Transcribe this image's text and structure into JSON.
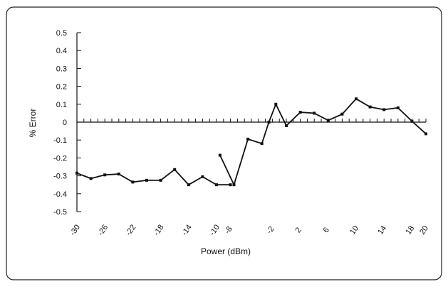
{
  "chart_data": {
    "type": "line",
    "title": "",
    "xlabel": "Power (dBm)",
    "ylabel": "% Error",
    "ylim": [
      -0.5,
      0.5
    ],
    "xlim": [
      -30,
      20
    ],
    "yticks": [
      0.5,
      0.4,
      0.3,
      0.2,
      0.1,
      0,
      -0.1,
      -0.2,
      -0.3,
      -0.4,
      -0.5
    ],
    "ytick_labels": [
      "0.5",
      "0.4",
      "0.3",
      "0.2",
      "0.1",
      "0",
      "-0.1",
      "-0.2",
      "-0.3",
      "-0.4",
      "-0.5"
    ],
    "xticks": [
      -30,
      -26,
      -22,
      -18,
      -14,
      -10,
      -8,
      -2,
      2,
      6,
      10,
      14,
      18,
      20
    ],
    "xtick_labels": [
      "-30",
      "-26",
      "-22",
      "-18",
      "-14",
      "-10",
      "-8",
      "-2",
      "2",
      "6",
      "10",
      "14",
      "18",
      "20"
    ],
    "grid": false,
    "legend": "none",
    "series": [
      {
        "segments": [
          {
            "x": [
              -30,
              -28,
              -26,
              -24,
              -22,
              -20,
              -18,
              -16,
              -14,
              -12,
              -10,
              -8
            ],
            "y": [
              -0.285,
              -0.315,
              -0.295,
              -0.29,
              -0.335,
              -0.325,
              -0.325,
              -0.265,
              -0.35,
              -0.305,
              -0.35,
              -0.35
            ]
          },
          {
            "x": [
              -9.5,
              -7.5,
              -5.5,
              -3.5,
              -2.5,
              -1.5,
              0,
              2,
              4,
              6,
              8,
              10,
              12,
              14,
              16,
              18,
              20
            ],
            "y": [
              -0.185,
              -0.35,
              -0.095,
              -0.12,
              0,
              0.1,
              -0.02,
              0.055,
              0.05,
              0.01,
              0.045,
              0.13,
              0.085,
              0.07,
              0.08,
              0.005,
              -0.065
            ]
          }
        ]
      }
    ]
  }
}
